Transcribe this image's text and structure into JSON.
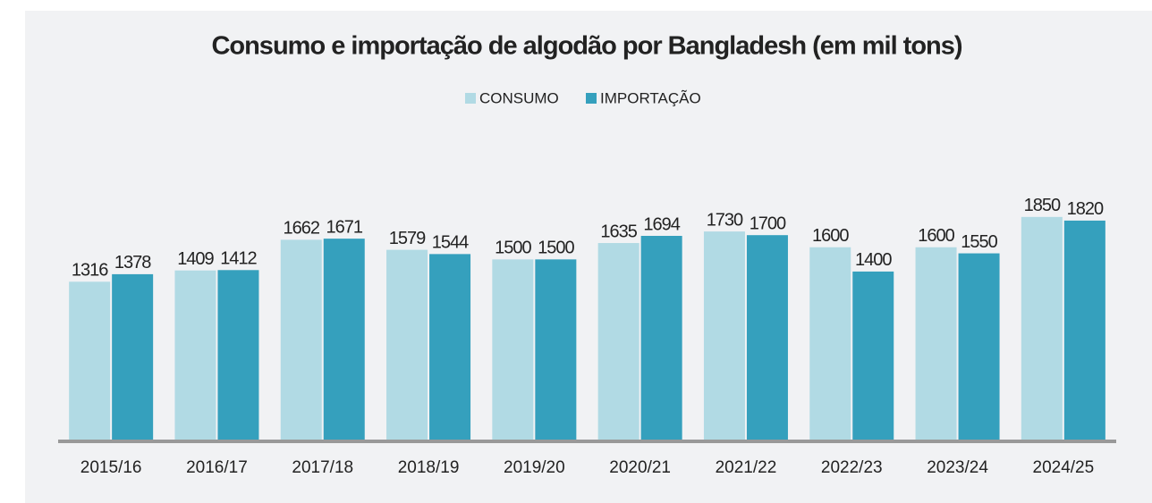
{
  "chart_data": {
    "type": "bar",
    "title": "Consumo e importação de algodão por Bangladesh (em mil tons)",
    "categories": [
      "2015/16",
      "2016/17",
      "2017/18",
      "2018/19",
      "2019/20",
      "2020/21",
      "2021/22",
      "2022/23",
      "2023/24",
      "2024/25"
    ],
    "series": [
      {
        "name": "CONSUMO",
        "color": "#b1dae4",
        "values": [
          1316,
          1409,
          1662,
          1579,
          1500,
          1635,
          1730,
          1600,
          1600,
          1850
        ]
      },
      {
        "name": "IMPORTAÇÃO",
        "color": "#35a0bd",
        "values": [
          1378,
          1412,
          1671,
          1544,
          1500,
          1694,
          1700,
          1400,
          1550,
          1820
        ]
      }
    ],
    "ylim": [
      0,
      2600
    ],
    "legend": "top"
  }
}
